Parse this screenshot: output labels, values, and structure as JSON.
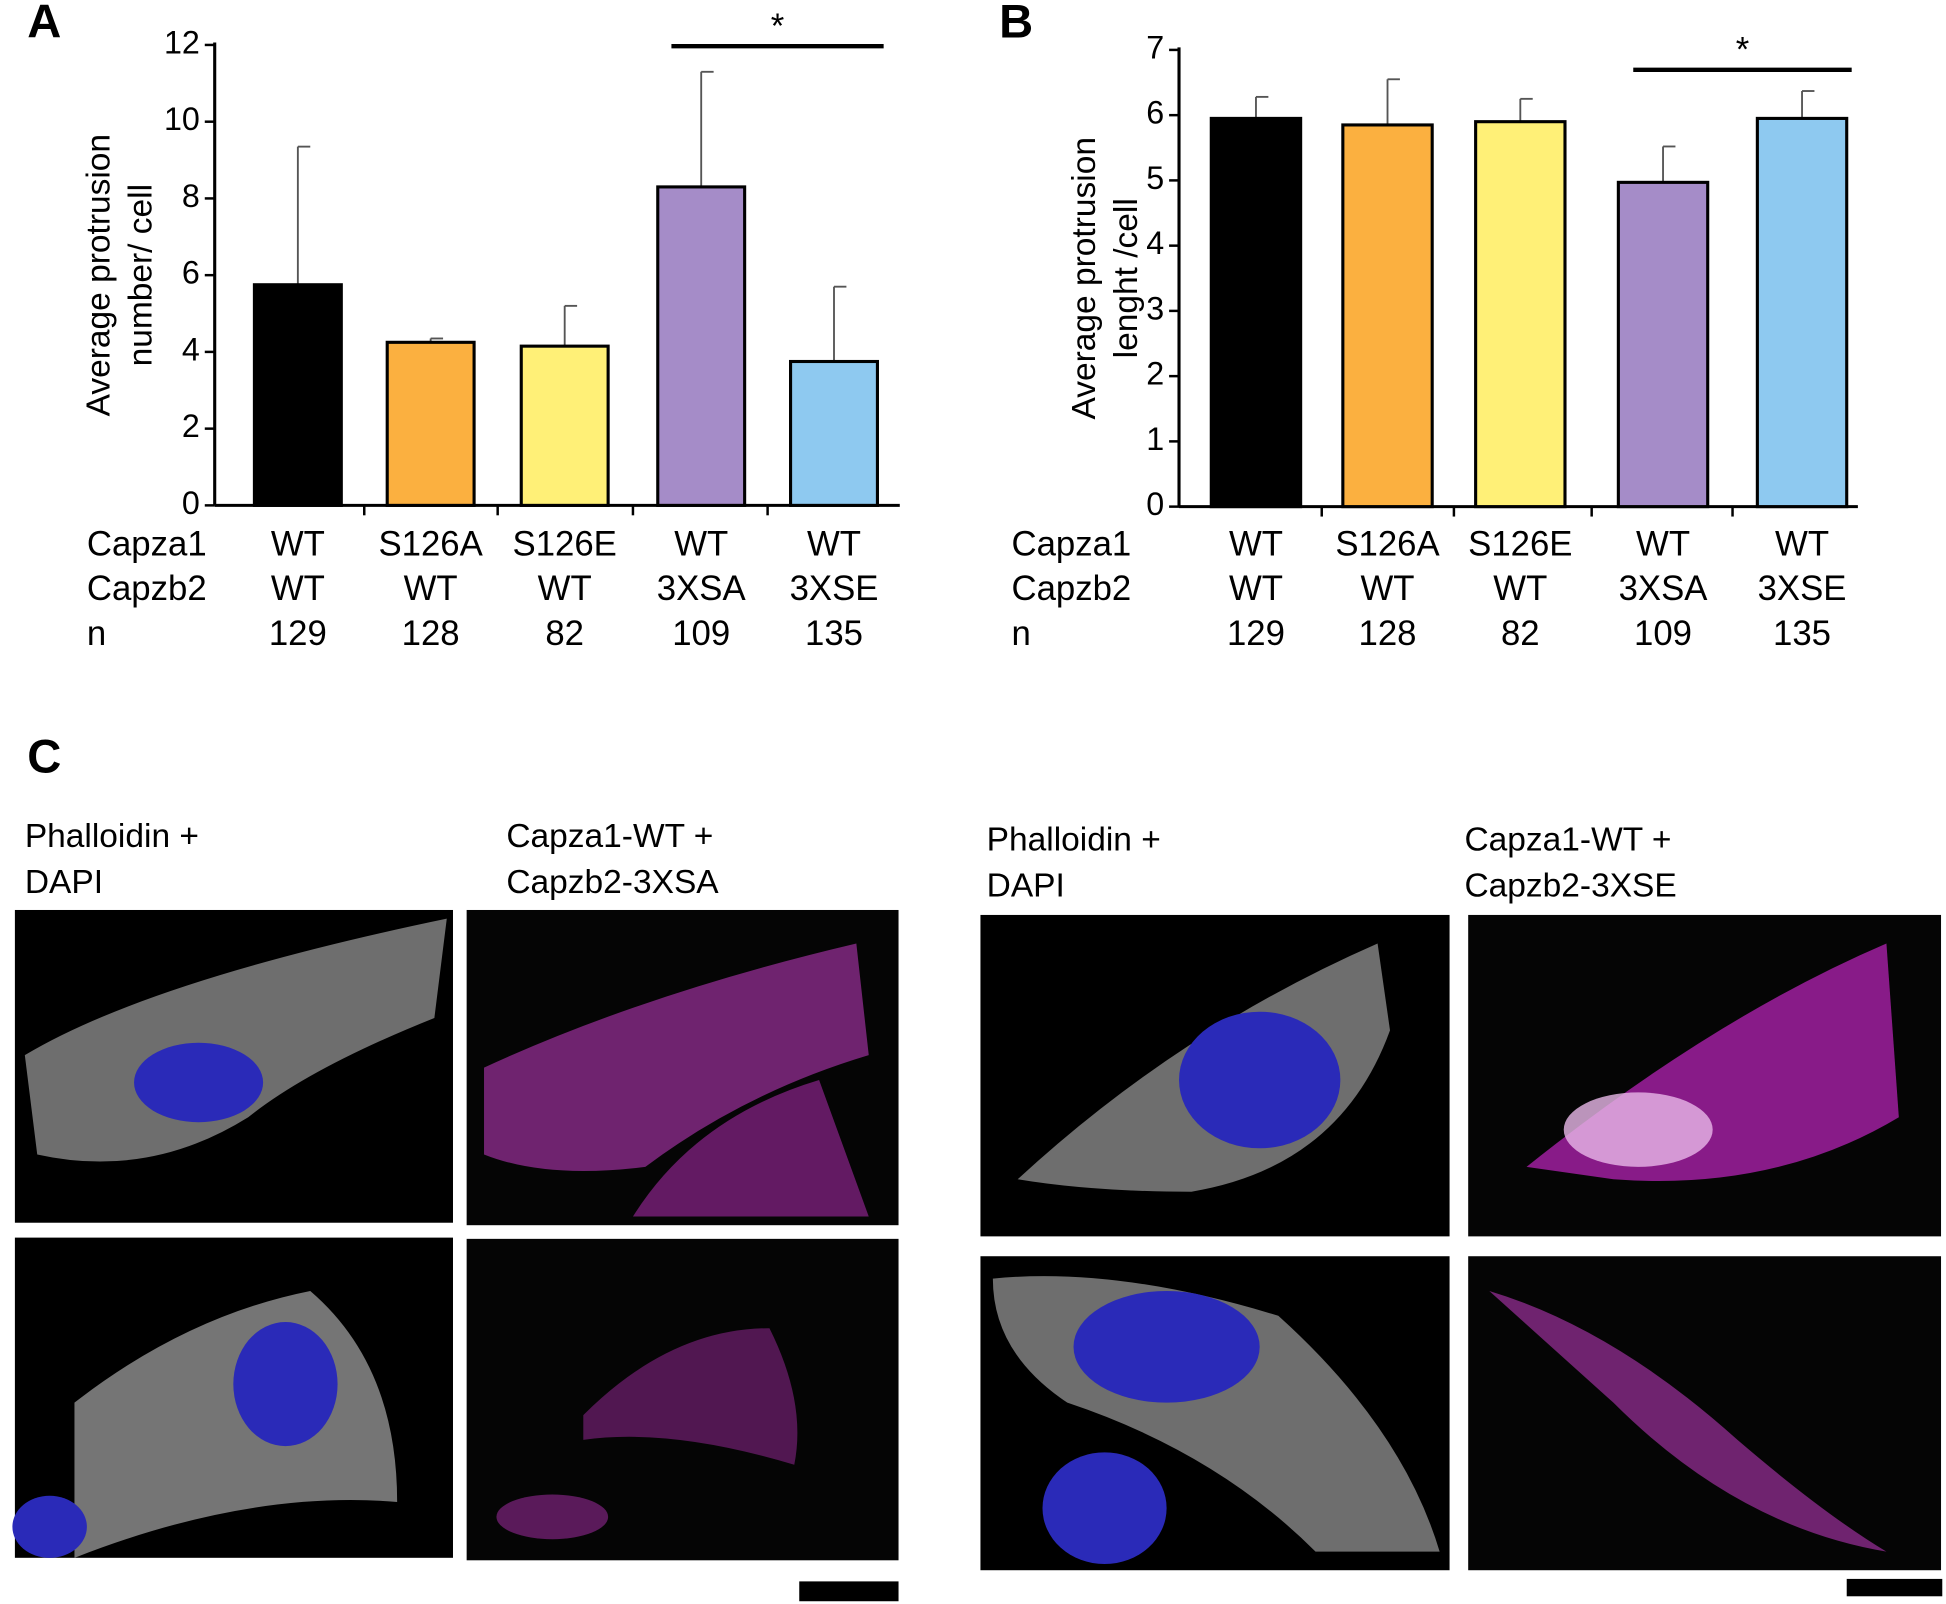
{
  "chart_data": [
    {
      "type": "bar",
      "panel": "A",
      "ylabel": [
        "Average protrusion",
        "number/ cell"
      ],
      "categories": [
        0,
        1,
        2,
        3,
        4
      ],
      "category_rows": [
        {
          "label": "Capza1",
          "values": [
            "WT",
            "S126A",
            "S126E",
            "WT",
            "WT"
          ]
        },
        {
          "label": "Capzb2",
          "values": [
            "WT",
            "WT",
            "WT",
            "3XSA",
            "3XSE"
          ]
        },
        {
          "label": "n",
          "values": [
            129,
            128,
            82,
            109,
            135
          ]
        }
      ],
      "values": [
        5.75,
        4.25,
        4.15,
        8.3,
        3.75
      ],
      "errors": [
        3.6,
        0.1,
        1.05,
        3.0,
        1.95
      ],
      "colors": [
        "#000000",
        "#fbb040",
        "#fff077",
        "#a58cc8",
        "#8ec9f0"
      ],
      "ylim": [
        0,
        12
      ],
      "yticks": [
        0,
        2,
        4,
        6,
        8,
        10,
        12
      ],
      "significance": {
        "from": 3,
        "to": 4,
        "label": "*"
      }
    },
    {
      "type": "bar",
      "panel": "B",
      "ylabel": [
        "Average protrusion",
        "lenght /cell"
      ],
      "categories": [
        0,
        1,
        2,
        3,
        4
      ],
      "category_rows": [
        {
          "label": "Capza1",
          "values": [
            "WT",
            "S126A",
            "S126E",
            "WT",
            "WT"
          ]
        },
        {
          "label": "Capzb2",
          "values": [
            "WT",
            "WT",
            "WT",
            "3XSA",
            "3XSE"
          ]
        },
        {
          "label": "n",
          "values": [
            129,
            128,
            82,
            109,
            135
          ]
        }
      ],
      "values": [
        5.95,
        5.85,
        5.9,
        4.97,
        5.95
      ],
      "errors": [
        0.33,
        0.7,
        0.35,
        0.55,
        0.42
      ],
      "colors": [
        "#000000",
        "#fbb040",
        "#fff077",
        "#a58cc8",
        "#8ec9f0"
      ],
      "ylim": [
        0,
        7
      ],
      "yticks": [
        0,
        1,
        2,
        3,
        4,
        5,
        6,
        7
      ],
      "significance": {
        "from": 3,
        "to": 4,
        "label": "*"
      }
    }
  ],
  "panel_c": {
    "label": "C",
    "captions": [
      [
        "Phalloidin +",
        "DAPI"
      ],
      [
        "Capza1-WT +",
        "Capzb2-3XSA"
      ],
      [
        "Phalloidin +",
        "DAPI"
      ],
      [
        "Capza1-WT +",
        "Capzb2-3XSE"
      ]
    ]
  }
}
